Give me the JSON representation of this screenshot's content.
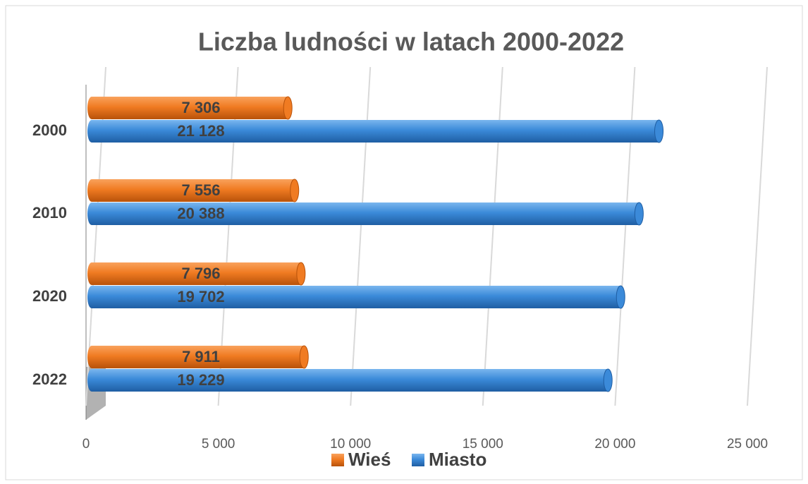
{
  "chart_data": {
    "type": "bar3d",
    "title": "Liczba ludności w latach 2000-2022",
    "categories": [
      "2000",
      "2010",
      "2020",
      "2022"
    ],
    "series": [
      {
        "name": "Wieś",
        "color": "#f07b22",
        "values": [
          7306,
          7556,
          7796,
          7911
        ],
        "value_labels": [
          "7 306",
          "7 556",
          "7 796",
          "7 911"
        ]
      },
      {
        "name": "Miasto",
        "color": "#3b8ad9",
        "values": [
          21128,
          20388,
          19702,
          19229
        ],
        "value_labels": [
          "21 128",
          "20 388",
          "19 702",
          "19 229"
        ]
      }
    ],
    "xlim": [
      0,
      25000
    ],
    "xticks": [
      0,
      {
        "value": 5000,
        "label": "5 000"
      },
      {
        "value": 10000,
        "label": "10 000"
      },
      {
        "value": 15000,
        "label": "15 000"
      },
      {
        "value": 20000,
        "label": "20 000"
      },
      {
        "value": 25000,
        "label": "25 000"
      }
    ],
    "grid": true,
    "legend": "bottom"
  }
}
